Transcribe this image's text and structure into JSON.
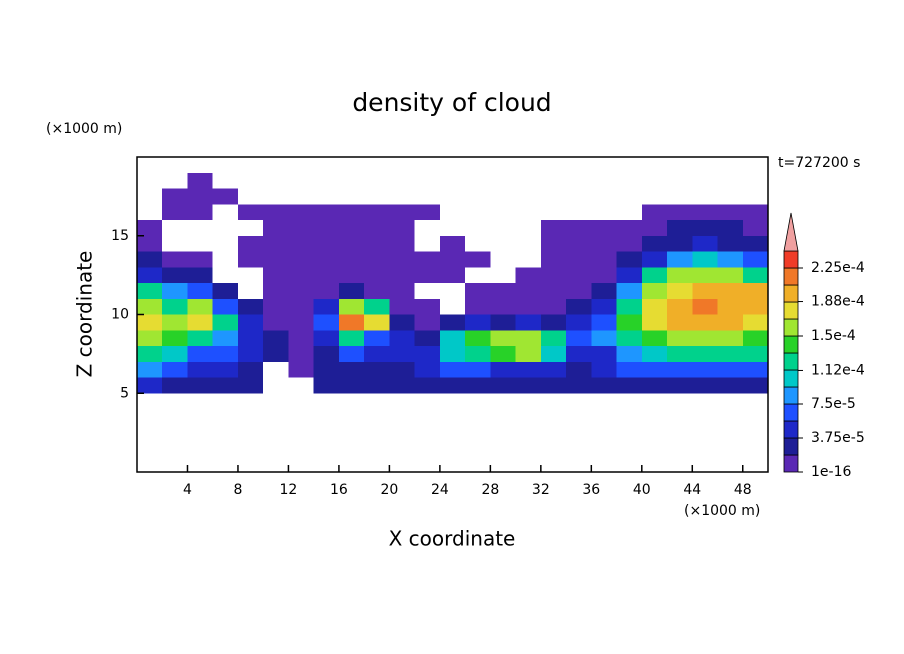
{
  "chart_data": {
    "type": "contour",
    "title": "density of cloud",
    "xlabel": "X coordinate",
    "ylabel": "Z coordinate",
    "xunit": "(×1000 m)",
    "yunit": "(×1000 m)",
    "time_label": "t=727200 s",
    "xlim": [
      0,
      50
    ],
    "ylim": [
      0,
      20
    ],
    "xticks": [
      4,
      8,
      12,
      16,
      20,
      24,
      28,
      32,
      36,
      40,
      44,
      48
    ],
    "yticks": [
      5,
      10,
      15
    ],
    "x": [
      1,
      3,
      5,
      7,
      9,
      11,
      13,
      15,
      17,
      19,
      21,
      23,
      25,
      27,
      29,
      31,
      33,
      35,
      37,
      39,
      41,
      43,
      45,
      47,
      49
    ],
    "z": [
      5.5,
      6.5,
      7.5,
      8.5,
      9.5,
      10.5,
      11.5,
      12.5,
      13.5,
      14.5,
      15.5,
      16.5,
      17.5,
      18.5
    ],
    "levels": [
      1e-16,
      1.875e-05,
      3.75e-05,
      5.625e-05,
      7.5e-05,
      9.375e-05,
      0.0001125,
      0.00013125,
      0.00015,
      0.00016875,
      0.0001875,
      0.00020625,
      0.000225,
      0.00024375
    ],
    "colors": [
      "#5a28b4",
      "#1e1e96",
      "#1e28c8",
      "#1e50ff",
      "#1e96ff",
      "#00c8c8",
      "#00d28c",
      "#28d228",
      "#a0e632",
      "#e6dc32",
      "#f0af28",
      "#f07828",
      "#f03c28"
    ],
    "over_color": "#f0a0a0",
    "colorbar_ticks": [
      {
        "value": 1e-16,
        "label": "1e-16"
      },
      {
        "value": 3.75e-05,
        "label": "3.75e-5"
      },
      {
        "value": 7.5e-05,
        "label": "7.5e-5"
      },
      {
        "value": 0.000112,
        "label": "1.12e-4"
      },
      {
        "value": 0.00015,
        "label": "1.5e-4"
      },
      {
        "value": 0.000188,
        "label": "1.88e-4"
      },
      {
        "value": 0.000225,
        "label": "2.25e-4"
      }
    ],
    "values": [
      [
        5e-05,
        3e-05,
        3e-05,
        3e-05,
        2e-05,
        null,
        null,
        2e-05,
        2e-05,
        2e-05,
        2e-05,
        3e-05,
        3e-05,
        3e-05,
        3e-05,
        3e-05,
        2e-05,
        3e-05,
        3e-05,
        3e-05,
        3e-05,
        3e-05,
        3e-05,
        3e-05,
        3e-05
      ],
      [
        9e-05,
        7e-05,
        5e-05,
        5e-05,
        3e-05,
        null,
        1e-05,
        3e-05,
        3e-05,
        3e-05,
        3e-05,
        5e-05,
        7e-05,
        7e-05,
        5e-05,
        5e-05,
        5e-05,
        3e-05,
        5e-05,
        7e-05,
        7e-05,
        7e-05,
        7e-05,
        7e-05,
        7e-05
      ],
      [
        0.00012,
        0.0001,
        7e-05,
        7e-05,
        5e-05,
        3e-05,
        1e-05,
        3e-05,
        7e-05,
        5e-05,
        5e-05,
        5e-05,
        0.0001,
        0.00012,
        0.00014,
        0.00016,
        0.0001,
        5e-05,
        5e-05,
        9e-05,
        0.00011,
        0.00012,
        0.00012,
        0.00012,
        0.00012
      ],
      [
        0.00015,
        0.00014,
        0.00012,
        9e-05,
        5e-05,
        3e-05,
        1e-05,
        5e-05,
        0.00012,
        7e-05,
        5e-05,
        3e-05,
        0.0001,
        0.00014,
        0.00016,
        0.00015,
        0.00012,
        7e-05,
        9e-05,
        0.00012,
        0.00014,
        0.00015,
        0.00015,
        0.00015,
        0.00014
      ],
      [
        0.00018,
        0.00015,
        0.00018,
        0.00012,
        5e-05,
        1e-05,
        1e-05,
        7e-05,
        0.00022,
        0.00018,
        3e-05,
        1e-05,
        3e-05,
        5e-05,
        3e-05,
        5e-05,
        3e-05,
        5e-05,
        7e-05,
        0.00014,
        0.00018,
        0.00019,
        0.0002,
        0.00019,
        0.00018
      ],
      [
        0.00016,
        0.00012,
        0.00016,
        7e-05,
        3e-05,
        1e-05,
        1e-05,
        5e-05,
        0.00016,
        0.00012,
        1e-05,
        1e-05,
        null,
        1e-05,
        1e-05,
        1e-05,
        1e-05,
        3e-05,
        5e-05,
        0.00012,
        0.00018,
        0.0002,
        0.00021,
        0.0002,
        0.0002
      ],
      [
        0.00012,
        9e-05,
        7e-05,
        3e-05,
        null,
        1e-05,
        1e-05,
        1e-05,
        3e-05,
        1e-05,
        1e-05,
        null,
        null,
        1e-05,
        1e-05,
        1e-05,
        1e-05,
        1e-05,
        3e-05,
        9e-05,
        0.00016,
        0.00018,
        0.0002,
        0.0002,
        0.00019
      ],
      [
        5e-05,
        3e-05,
        2e-05,
        null,
        null,
        1e-05,
        1e-05,
        1e-05,
        1e-05,
        1e-05,
        1e-05,
        1e-05,
        1e-05,
        null,
        null,
        1e-05,
        1e-05,
        1e-05,
        1e-05,
        5e-05,
        0.00012,
        0.00015,
        0.00016,
        0.00015,
        0.00012
      ],
      [
        3e-05,
        1e-05,
        1e-05,
        null,
        1e-05,
        1e-05,
        1e-05,
        1e-05,
        1e-05,
        1e-05,
        1e-05,
        1e-05,
        1e-05,
        1e-05,
        null,
        null,
        1e-05,
        1e-05,
        1e-05,
        3e-05,
        5e-05,
        9e-05,
        0.0001,
        9e-05,
        7e-05
      ],
      [
        1e-05,
        null,
        null,
        null,
        1e-05,
        1e-05,
        1e-05,
        1e-05,
        1e-05,
        1e-05,
        1e-05,
        null,
        1e-05,
        null,
        null,
        null,
        1e-05,
        1e-05,
        1e-05,
        1e-05,
        3e-05,
        3e-05,
        5e-05,
        3e-05,
        3e-05
      ],
      [
        1e-05,
        null,
        null,
        null,
        null,
        1e-05,
        1e-05,
        1e-05,
        1e-05,
        1e-05,
        1e-05,
        null,
        null,
        null,
        null,
        null,
        1e-05,
        1e-05,
        1e-05,
        1e-05,
        1e-05,
        3e-05,
        3e-05,
        3e-05,
        1e-05
      ],
      [
        null,
        1e-05,
        1e-05,
        null,
        1e-05,
        1e-05,
        1e-05,
        1e-05,
        1e-05,
        1e-05,
        1e-05,
        1e-05,
        null,
        null,
        null,
        null,
        null,
        null,
        null,
        null,
        1e-05,
        1e-05,
        1e-05,
        1e-05,
        1e-05
      ],
      [
        null,
        1e-05,
        1e-05,
        1e-05,
        null,
        null,
        null,
        null,
        null,
        null,
        null,
        null,
        null,
        null,
        null,
        null,
        null,
        null,
        null,
        null,
        null,
        null,
        null,
        null,
        null
      ],
      [
        null,
        null,
        1e-05,
        null,
        null,
        null,
        null,
        null,
        null,
        null,
        null,
        null,
        null,
        null,
        null,
        null,
        null,
        null,
        null,
        null,
        null,
        null,
        null,
        null,
        null
      ]
    ]
  }
}
